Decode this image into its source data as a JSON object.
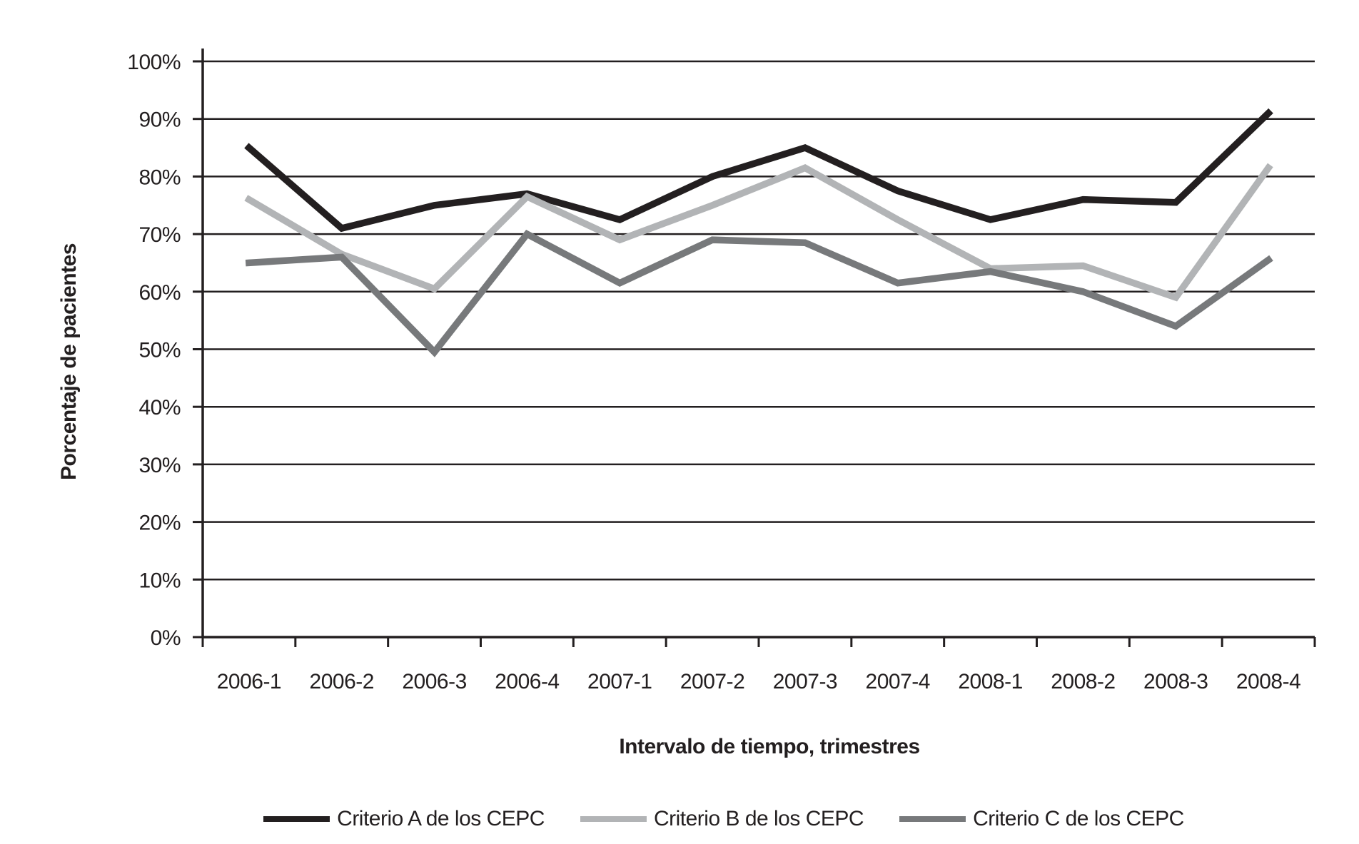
{
  "figure": {
    "background": "#ffffff",
    "axis_color": "#231f20"
  },
  "chart_data": {
    "type": "line",
    "title": "",
    "xlabel": "Intervalo de tiempo, trimestres",
    "ylabel": "Porcentaje de pacientes",
    "categories": [
      "2006-1",
      "2006-2",
      "2006-3",
      "2006-4",
      "2007-1",
      "2007-2",
      "2007-3",
      "2007-4",
      "2008-1",
      "2008-2",
      "2008-3",
      "2008-4"
    ],
    "y_ticks": [
      "0%",
      "10%",
      "20%",
      "30%",
      "40%",
      "50%",
      "60%",
      "70%",
      "80%",
      "90%",
      "100%"
    ],
    "ylim": [
      0,
      100
    ],
    "y_tick_step": 10,
    "grid": "horizontal",
    "legend_position": "bottom",
    "series": [
      {
        "name": "Criterio A de los CEPC",
        "color": "#231f20",
        "values": [
          85,
          71,
          75,
          77,
          72.5,
          80,
          85,
          77.5,
          72.5,
          76,
          75.5,
          91
        ]
      },
      {
        "name": "Criterio B de los CEPC",
        "color": "#b2b4b6",
        "values": [
          76,
          66.5,
          60.5,
          76.5,
          69,
          75,
          81.5,
          72.5,
          64,
          64.5,
          59,
          81.5
        ]
      },
      {
        "name": "Criterio C de los CEPC",
        "color": "#77797b",
        "values": [
          65,
          66,
          49.5,
          70,
          61.5,
          69,
          68.5,
          61.5,
          63.5,
          60,
          54,
          65.5
        ]
      }
    ]
  }
}
